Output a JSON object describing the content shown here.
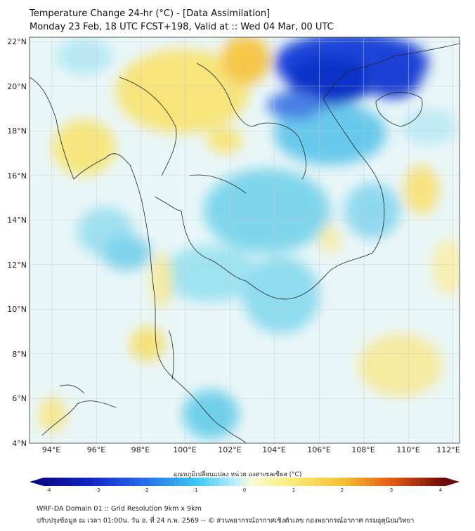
{
  "title": {
    "line1": "Temperature Change 24-hr (°C) - [Data Assimilation]",
    "line2": "Monday 23 Feb, 18 UTC FCST+198, Valid at :: Wed 04 Mar, 00 UTC"
  },
  "axes": {
    "lat_ticks": [
      "22°N",
      "20°N",
      "18°N",
      "16°N",
      "14°N",
      "12°N",
      "10°N",
      "8°N",
      "6°N",
      "4°N"
    ],
    "lon_ticks": [
      "94°E",
      "96°E",
      "98°E",
      "100°E",
      "102°E",
      "104°E",
      "106°E",
      "108°E",
      "110°E",
      "112°E"
    ],
    "lat_range": [
      4,
      22.2
    ],
    "lon_range": [
      93,
      112.3
    ]
  },
  "colorbar": {
    "label": "อุณหภูมิเปลี่ยนแปลง หน่วย องศาเซลเซียส (°C)",
    "ticks": [
      "-4",
      "-3",
      "-2",
      "-1",
      "0",
      "1",
      "2",
      "3",
      "4"
    ],
    "range": [
      -4,
      4
    ]
  },
  "footer": {
    "line1": "WRF-DA Domain 01 :: Grid Resolution 9km x 9km",
    "line2": "ปรับปรุงข้อมูล ณ เวลา 01:00น. วัน อ. ที่ 24 ก.พ. 2569 -- © ส่วนพยากรณ์อากาศเชิงตัวเลข กองพยากรณ์อากาศ กรมอุตุนิยมวิทยา"
  }
}
